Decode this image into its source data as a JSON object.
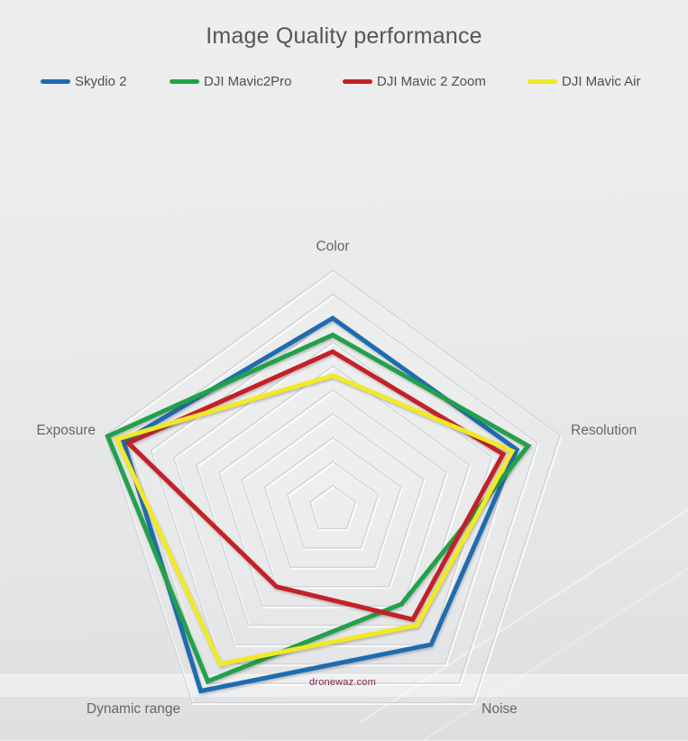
{
  "title": "Image Quality performance",
  "watermark": "dronewaz.com",
  "colors": {
    "background": "#e8e9e9",
    "title_text": "#565656",
    "axis_label_text": "#666666",
    "legend_text": "#4f4f4f",
    "grid_line": "#d2d4d8",
    "watermark_text": "#7d2248"
  },
  "chart_data": {
    "type": "radar",
    "title": "Image Quality performance",
    "categories": [
      "Color",
      "Resolution",
      "Noise",
      "Dynamic range",
      "Exposure"
    ],
    "axis_range": [
      0,
      10
    ],
    "grid_rings": 10,
    "grid_shape": "concentric-pentagons",
    "tick_labels_visible": false,
    "legend_position": "top",
    "series": [
      {
        "name": "Skydio 2",
        "color": "#1e6cb0",
        "values": [
          8.0,
          8.1,
          7.0,
          9.4,
          9.2
        ]
      },
      {
        "name": "DJI Mavic2Pro",
        "color": "#21a149",
        "values": [
          7.3,
          8.6,
          4.9,
          8.9,
          9.9
        ]
      },
      {
        "name": "DJI Mavic 2 Zoom",
        "color": "#c42127",
        "values": [
          6.6,
          7.5,
          5.7,
          4.0,
          9.0
        ]
      },
      {
        "name": "DJI Mavic Air",
        "color": "#f2e927",
        "values": [
          5.6,
          7.9,
          6.0,
          8.0,
          9.5
        ]
      }
    ]
  }
}
